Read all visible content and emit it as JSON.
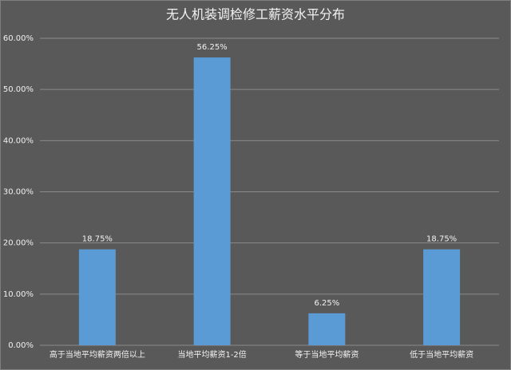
{
  "chart_data": {
    "type": "bar",
    "title": "无人机装调检修工薪资水平分布",
    "categories": [
      "高于当地平均薪资两倍以上",
      "当地平均薪资1-2倍",
      "等于当地平均薪资",
      "低于当地平均薪资"
    ],
    "values": [
      18.75,
      56.25,
      6.25,
      18.75
    ],
    "value_labels": [
      "18.75%",
      "56.25%",
      "6.25%",
      "18.75%"
    ],
    "color": "#5b9bd5",
    "ylim": [
      0,
      60
    ],
    "yticks": [
      {
        "value": 0,
        "label": "0.00%"
      },
      {
        "value": 10,
        "label": "10.00%"
      },
      {
        "value": 20,
        "label": "20.00%"
      },
      {
        "value": 30,
        "label": "30.00%"
      },
      {
        "value": 40,
        "label": "40.00%"
      },
      {
        "value": 50,
        "label": "50.00%"
      },
      {
        "value": 60,
        "label": "60.00%"
      }
    ],
    "grid": true
  }
}
